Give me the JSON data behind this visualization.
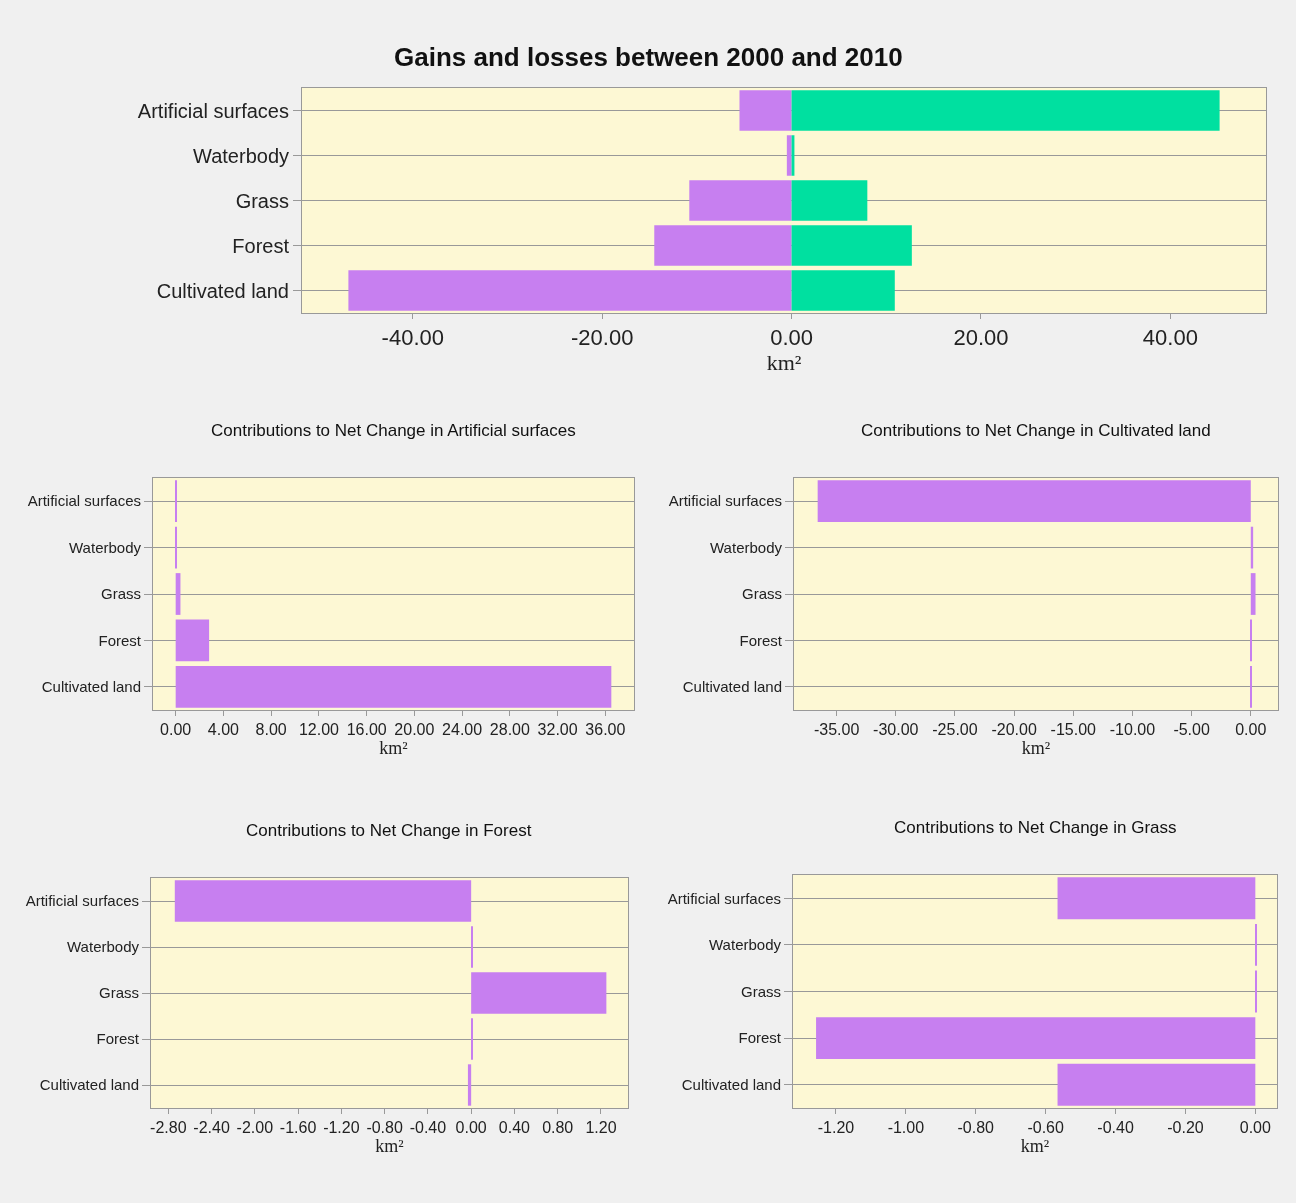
{
  "chart_data": [
    {
      "type": "bar",
      "orientation": "horizontal",
      "stacked": true,
      "title": "Gains and losses between 2000 and 2010",
      "xlabel": "km²",
      "categories": [
        "Artificial surfaces",
        "Waterbody",
        "Grass",
        "Forest",
        "Cultivated land"
      ],
      "series": [
        {
          "color": "#c77ff0",
          "values": [
            -5.5,
            -0.5,
            -10.8,
            -14.5,
            -46.8
          ]
        },
        {
          "color": "#00e0a0",
          "values": [
            45.2,
            0.3,
            8.0,
            12.7,
            10.9
          ]
        }
      ],
      "xlim": [
        -51.7,
        50.1
      ],
      "xticks": [
        {
          "value": -40,
          "label": "-40.00"
        },
        {
          "value": -20,
          "label": "-20.00"
        },
        {
          "value": 0,
          "label": "0.00"
        },
        {
          "value": 20,
          "label": "20.00"
        },
        {
          "value": 40,
          "label": "40.00"
        }
      ],
      "grid": "y"
    },
    {
      "type": "bar",
      "orientation": "horizontal",
      "title": "Contributions to Net Change in Artificial surfaces",
      "xlabel": "km²",
      "categories": [
        "Artificial surfaces",
        "Waterbody",
        "Grass",
        "Forest",
        "Cultivated land"
      ],
      "series": [
        {
          "color": "#c77ff0",
          "values": [
            0.1,
            0.1,
            0.4,
            2.8,
            36.5
          ]
        }
      ],
      "xlim": [
        -1.9,
        38.4
      ],
      "xticks": [
        {
          "value": 0,
          "label": "0.00"
        },
        {
          "value": 4,
          "label": "4.00"
        },
        {
          "value": 8,
          "label": "8.00"
        },
        {
          "value": 12,
          "label": "12.00"
        },
        {
          "value": 16,
          "label": "16.00"
        },
        {
          "value": 20,
          "label": "20.00"
        },
        {
          "value": 24,
          "label": "24.00"
        },
        {
          "value": 28,
          "label": "28.00"
        },
        {
          "value": 32,
          "label": "32.00"
        },
        {
          "value": 36,
          "label": "36.00"
        }
      ],
      "grid": "y"
    },
    {
      "type": "bar",
      "orientation": "horizontal",
      "title": "Contributions to Net Change in Cultivated land",
      "xlabel": "km²",
      "categories": [
        "Artificial surfaces",
        "Waterbody",
        "Grass",
        "Forest",
        "Cultivated land"
      ],
      "series": [
        {
          "color": "#c77ff0",
          "values": [
            -36.6,
            0.2,
            0.4,
            0.1,
            0.1
          ]
        }
      ],
      "xlim": [
        -38.6,
        2.3
      ],
      "xticks": [
        {
          "value": -35,
          "label": "-35.00"
        },
        {
          "value": -30,
          "label": "-30.00"
        },
        {
          "value": -25,
          "label": "-25.00"
        },
        {
          "value": -20,
          "label": "-20.00"
        },
        {
          "value": -15,
          "label": "-15.00"
        },
        {
          "value": -10,
          "label": "-10.00"
        },
        {
          "value": -5,
          "label": "-5.00"
        },
        {
          "value": 0,
          "label": "0.00"
        }
      ],
      "grid": "y"
    },
    {
      "type": "bar",
      "orientation": "horizontal",
      "title": "Contributions to Net Change in Forest",
      "xlabel": "km²",
      "categories": [
        "Artificial surfaces",
        "Waterbody",
        "Grass",
        "Forest",
        "Cultivated land"
      ],
      "series": [
        {
          "color": "#c77ff0",
          "values": [
            -2.74,
            0.01,
            1.25,
            0.01,
            -0.03
          ]
        }
      ],
      "xlim": [
        -2.96,
        1.45
      ],
      "xticks": [
        {
          "value": -2.8,
          "label": "-2.80"
        },
        {
          "value": -2.4,
          "label": "-2.40"
        },
        {
          "value": -2.0,
          "label": "-2.00"
        },
        {
          "value": -1.6,
          "label": "-1.60"
        },
        {
          "value": -1.2,
          "label": "-1.20"
        },
        {
          "value": -0.8,
          "label": "-0.80"
        },
        {
          "value": -0.4,
          "label": "-0.40"
        },
        {
          "value": 0,
          "label": "0.00"
        },
        {
          "value": 0.4,
          "label": "0.40"
        },
        {
          "value": 0.8,
          "label": "0.80"
        },
        {
          "value": 1.2,
          "label": "1.20"
        }
      ],
      "grid": "y"
    },
    {
      "type": "bar",
      "orientation": "horizontal",
      "title": "Contributions to Net Change in Grass",
      "xlabel": "km²",
      "categories": [
        "Artificial surfaces",
        "Waterbody",
        "Grass",
        "Forest",
        "Cultivated land"
      ],
      "series": [
        {
          "color": "#c77ff0",
          "values": [
            -0.566,
            0.003,
            0.003,
            -1.257,
            -0.566
          ]
        }
      ],
      "xlim": [
        -1.323,
        0.062
      ],
      "xticks": [
        {
          "value": -1.2,
          "label": "-1.20"
        },
        {
          "value": -1.0,
          "label": "-1.00"
        },
        {
          "value": -0.8,
          "label": "-0.80"
        },
        {
          "value": -0.6,
          "label": "-0.60"
        },
        {
          "value": -0.4,
          "label": "-0.40"
        },
        {
          "value": -0.2,
          "label": "-0.20"
        },
        {
          "value": 0,
          "label": "0.00"
        }
      ],
      "grid": "y"
    }
  ]
}
